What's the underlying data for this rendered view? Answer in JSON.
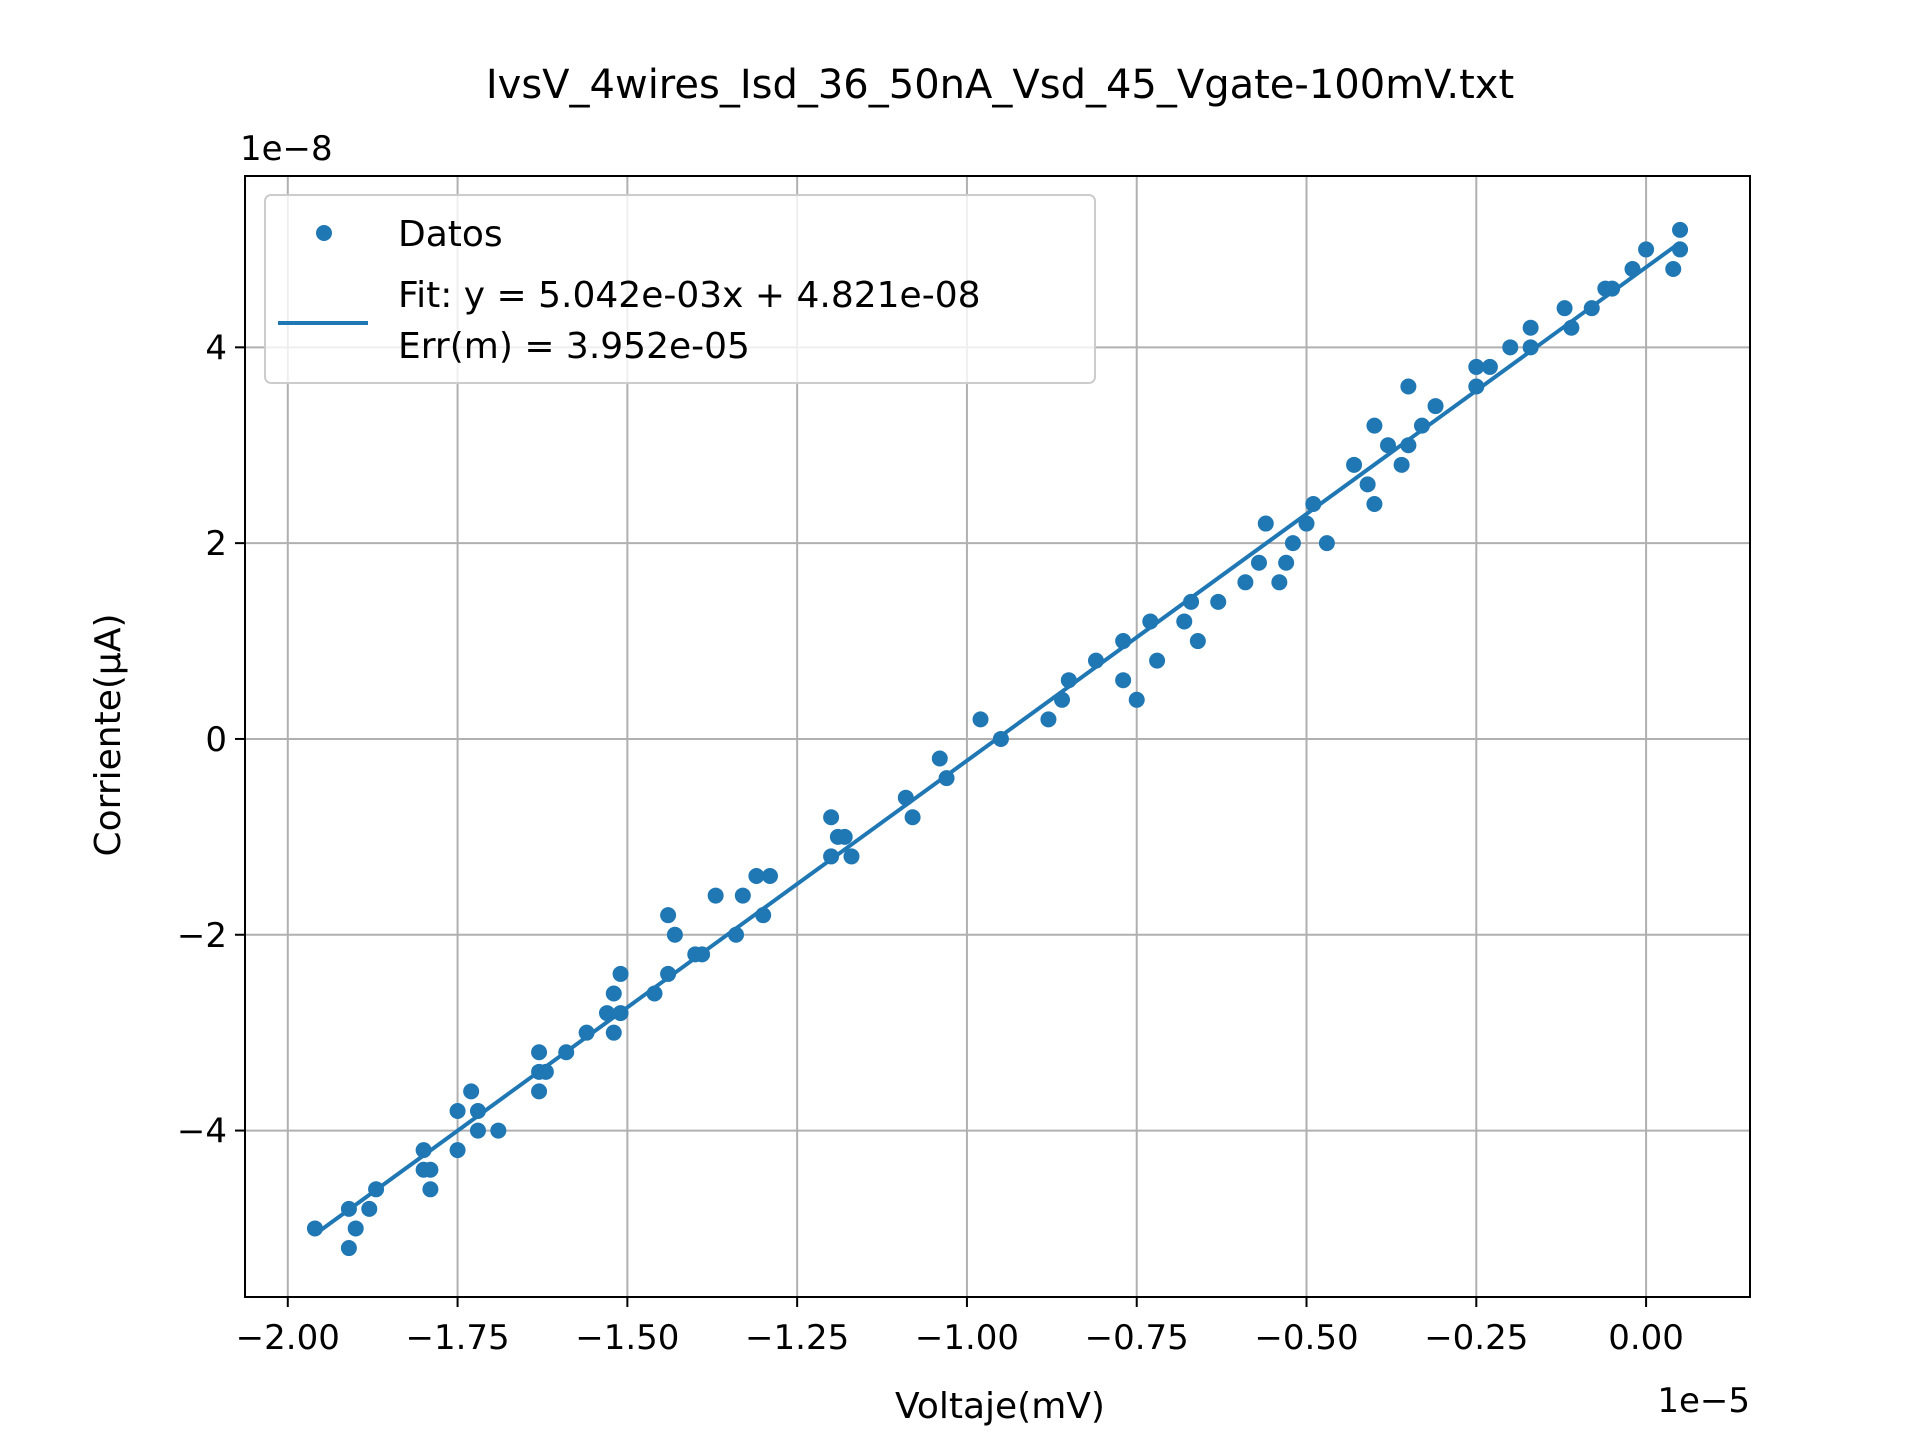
{
  "chart_data": {
    "type": "scatter",
    "title": "IvsV_4wires_Isd_36_50nA_Vsd_45_Vgate-100mV.txt",
    "xlabel": "Voltaje(mV)",
    "ylabel": "Corriente(μA)",
    "x_offset_label": "1e−5",
    "y_offset_label": "1e−8",
    "xlim": [
      -2.063,
      0.153
    ],
    "ylim": [
      -5.7,
      5.75
    ],
    "x_ticks": [
      -2.0,
      -1.75,
      -1.5,
      -1.25,
      -1.0,
      -0.75,
      -0.5,
      -0.25,
      0.0
    ],
    "x_tick_labels": [
      "−2.00",
      "−1.75",
      "−1.50",
      "−1.25",
      "−1.00",
      "−0.75",
      "−0.50",
      "−0.25",
      "0.00"
    ],
    "y_ticks": [
      -4,
      -2,
      0,
      2,
      4
    ],
    "y_tick_labels": [
      "−4",
      "−2",
      "0",
      "2",
      "4"
    ],
    "grid": true,
    "legend_position": "top-left",
    "colors": {
      "series": "#1f77b4",
      "grid": "#b0b0b0",
      "axes": "#000000"
    },
    "legend": {
      "scatter_label": "Datos",
      "fit_label_line1": "Fit: y = 5.042e-03x + 4.821e-08",
      "fit_label_line2": "Err(m) = 3.952e-05"
    },
    "series": [
      {
        "name": "Datos",
        "kind": "scatter",
        "points": [
          [
            -1.96,
            -5.0
          ],
          [
            -1.91,
            -4.8
          ],
          [
            -1.91,
            -5.2
          ],
          [
            -1.9,
            -5.0
          ],
          [
            -1.88,
            -4.8
          ],
          [
            -1.87,
            -4.6
          ],
          [
            -1.8,
            -4.2
          ],
          [
            -1.8,
            -4.4
          ],
          [
            -1.79,
            -4.4
          ],
          [
            -1.79,
            -4.6
          ],
          [
            -1.75,
            -4.2
          ],
          [
            -1.75,
            -3.8
          ],
          [
            -1.73,
            -3.6
          ],
          [
            -1.72,
            -3.8
          ],
          [
            -1.72,
            -4.0
          ],
          [
            -1.69,
            -4.0
          ],
          [
            -1.63,
            -3.2
          ],
          [
            -1.63,
            -3.4
          ],
          [
            -1.63,
            -3.6
          ],
          [
            -1.62,
            -3.4
          ],
          [
            -1.59,
            -3.2
          ],
          [
            -1.56,
            -3.0
          ],
          [
            -1.53,
            -2.8
          ],
          [
            -1.52,
            -2.6
          ],
          [
            -1.52,
            -3.0
          ],
          [
            -1.51,
            -2.8
          ],
          [
            -1.51,
            -2.4
          ],
          [
            -1.46,
            -2.6
          ],
          [
            -1.44,
            -2.4
          ],
          [
            -1.44,
            -1.8
          ],
          [
            -1.43,
            -2.0
          ],
          [
            -1.4,
            -2.2
          ],
          [
            -1.39,
            -2.2
          ],
          [
            -1.37,
            -1.6
          ],
          [
            -1.34,
            -2.0
          ],
          [
            -1.33,
            -1.6
          ],
          [
            -1.31,
            -1.4
          ],
          [
            -1.3,
            -1.8
          ],
          [
            -1.29,
            -1.4
          ],
          [
            -1.2,
            -1.2
          ],
          [
            -1.2,
            -0.8
          ],
          [
            -1.19,
            -1.0
          ],
          [
            -1.18,
            -1.0
          ],
          [
            -1.17,
            -1.2
          ],
          [
            -1.09,
            -0.6
          ],
          [
            -1.08,
            -0.8
          ],
          [
            -1.04,
            -0.2
          ],
          [
            -1.03,
            -0.4
          ],
          [
            -0.98,
            0.2
          ],
          [
            -0.95,
            0.0
          ],
          [
            -0.88,
            0.2
          ],
          [
            -0.86,
            0.4
          ],
          [
            -0.85,
            0.6
          ],
          [
            -0.81,
            0.8
          ],
          [
            -0.77,
            1.0
          ],
          [
            -0.77,
            0.6
          ],
          [
            -0.75,
            0.4
          ],
          [
            -0.73,
            1.2
          ],
          [
            -0.72,
            0.8
          ],
          [
            -0.68,
            1.2
          ],
          [
            -0.67,
            1.4
          ],
          [
            -0.66,
            1.0
          ],
          [
            -0.63,
            1.4
          ],
          [
            -0.59,
            1.6
          ],
          [
            -0.57,
            1.8
          ],
          [
            -0.56,
            2.2
          ],
          [
            -0.54,
            1.6
          ],
          [
            -0.53,
            1.8
          ],
          [
            -0.52,
            2.0
          ],
          [
            -0.5,
            2.2
          ],
          [
            -0.49,
            2.4
          ],
          [
            -0.47,
            2.0
          ],
          [
            -0.43,
            2.8
          ],
          [
            -0.41,
            2.6
          ],
          [
            -0.4,
            3.2
          ],
          [
            -0.4,
            2.4
          ],
          [
            -0.38,
            3.0
          ],
          [
            -0.36,
            2.8
          ],
          [
            -0.35,
            3.6
          ],
          [
            -0.35,
            3.0
          ],
          [
            -0.33,
            3.2
          ],
          [
            -0.31,
            3.4
          ],
          [
            -0.25,
            3.6
          ],
          [
            -0.25,
            3.8
          ],
          [
            -0.23,
            3.8
          ],
          [
            -0.2,
            4.0
          ],
          [
            -0.17,
            4.0
          ],
          [
            -0.17,
            4.2
          ],
          [
            -0.12,
            4.4
          ],
          [
            -0.11,
            4.2
          ],
          [
            -0.08,
            4.4
          ],
          [
            -0.06,
            4.6
          ],
          [
            -0.05,
            4.6
          ],
          [
            -0.02,
            4.8
          ],
          [
            0.0,
            5.0
          ],
          [
            0.04,
            4.8
          ],
          [
            0.05,
            5.2
          ],
          [
            0.05,
            5.0
          ]
        ]
      },
      {
        "name": "Fit: y = 5.042e-03x + 4.821e-08",
        "kind": "line",
        "points": [
          [
            -1.96,
            -5.06
          ],
          [
            0.05,
            5.07
          ]
        ]
      }
    ]
  }
}
